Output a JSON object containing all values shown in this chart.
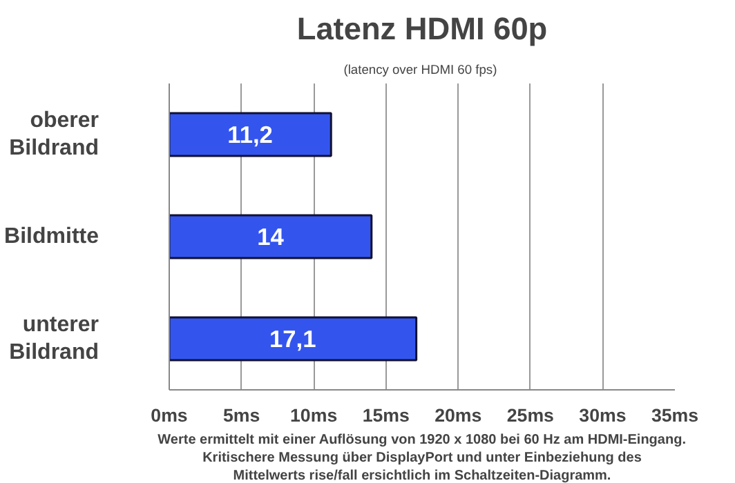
{
  "chart_data": {
    "type": "bar",
    "orientation": "horizontal",
    "title": "Latenz HDMI 60p",
    "subtitle": "(latency over HDMI 60  fps)",
    "categories": [
      "oberer Bildrand",
      "Bildmitte",
      "unterer Bildrand"
    ],
    "values": [
      11.2,
      14,
      17.1
    ],
    "color": "#3355ee",
    "value_labels": [
      "11,2",
      "14",
      "17,1"
    ],
    "xlim": [
      0,
      35
    ],
    "xticks": [
      {
        "value": 0,
        "label": "0ms"
      },
      {
        "value": 5,
        "label": "5ms"
      },
      {
        "value": 10,
        "label": "10ms"
      },
      {
        "value": 15,
        "label": "15ms"
      },
      {
        "value": 20,
        "label": "20ms"
      },
      {
        "value": 25,
        "label": "25ms"
      },
      {
        "value": 30,
        "label": "30ms"
      },
      {
        "value": 35,
        "label": "35ms"
      }
    ],
    "grid": "x",
    "annotations": [
      "Werte ermittelt mit einer Auflösung von 1920 x 1080 bei 60 Hz am HDMI-Eingang.",
      "Kritischere Messung über DisplayPort und unter Einbeziehung des",
      "Mittelwerts rise/fall ersichtlich im Schaltzeiten-Diagramm."
    ]
  }
}
